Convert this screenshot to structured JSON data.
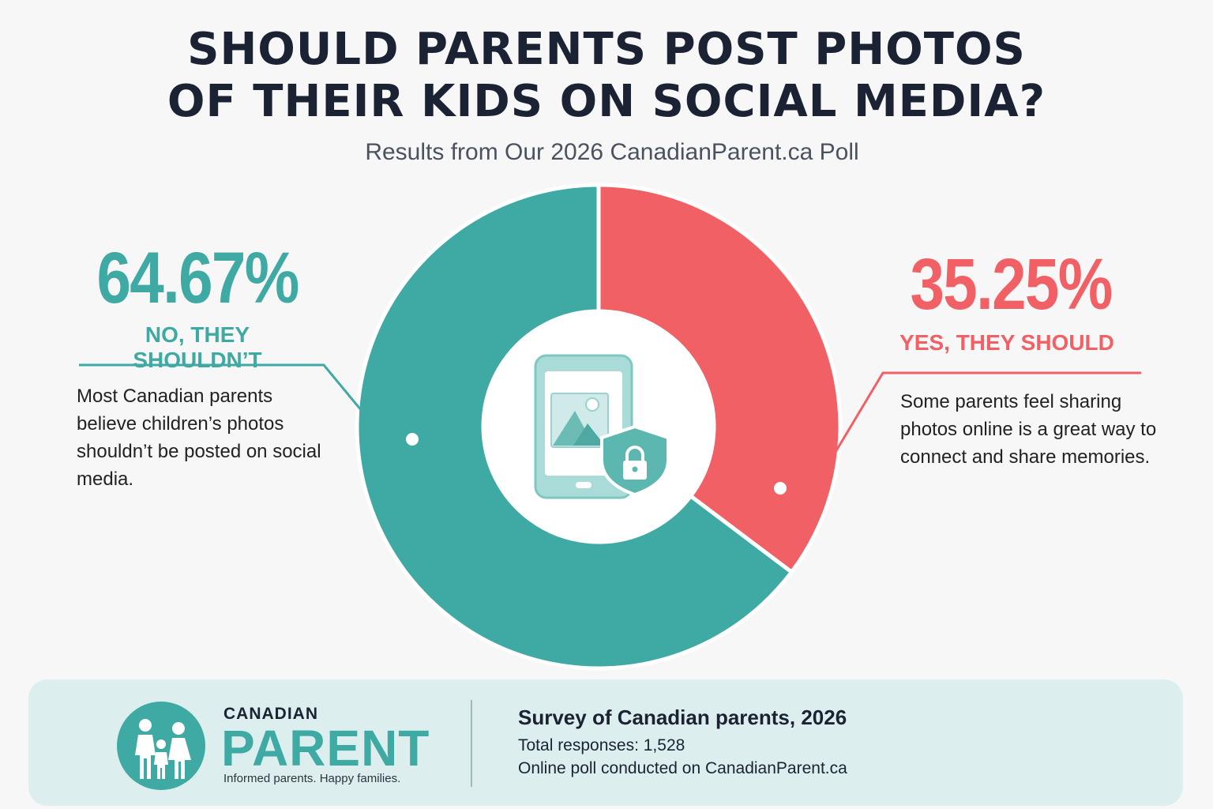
{
  "header": {
    "title_line1": "SHOULD PARENTS POST PHOTOS",
    "title_line2": "OF THEIR KIDS ON SOCIAL MEDIA?",
    "subtitle": "Results from Our 2026 CanadianParent.ca Poll"
  },
  "chart_data": {
    "type": "pie",
    "style": "donut",
    "title": "SHOULD PARENTS POST PHOTOS OF THEIR KIDS ON SOCIAL MEDIA?",
    "subtitle": "Results from Our 2026 CanadianParent.ca Poll",
    "slices": [
      {
        "label": "NO, THEY SHOULDN’T",
        "value": 64.67,
        "display": "64.67%",
        "color": "#3fa9a4",
        "description": "Most Canadian parents believe children’s photos shouldn’t be posted on social media."
      },
      {
        "label": "YES, THEY SHOULD",
        "value": 35.25,
        "display": "35.25%",
        "color": "#f06065",
        "description": "Some parents feel sharing photos online is a great way to connect and share memories."
      }
    ],
    "center_icon": "phone-photo-with-lock-shield-icon",
    "legend": "none"
  },
  "colors": {
    "teal": "#3fa9a4",
    "coral": "#f06065",
    "footer_bg": "#dcefee"
  },
  "footer": {
    "brand_top": "CANADIAN",
    "brand_main": "PARENT",
    "tagline": "Informed parents. Happy families.",
    "logo_icon": "family-icon",
    "heading": "Survey of Canadian parents, 2026",
    "responses": "Total responses: 1,528",
    "method": "Online poll conducted on CanadianParent.ca"
  }
}
